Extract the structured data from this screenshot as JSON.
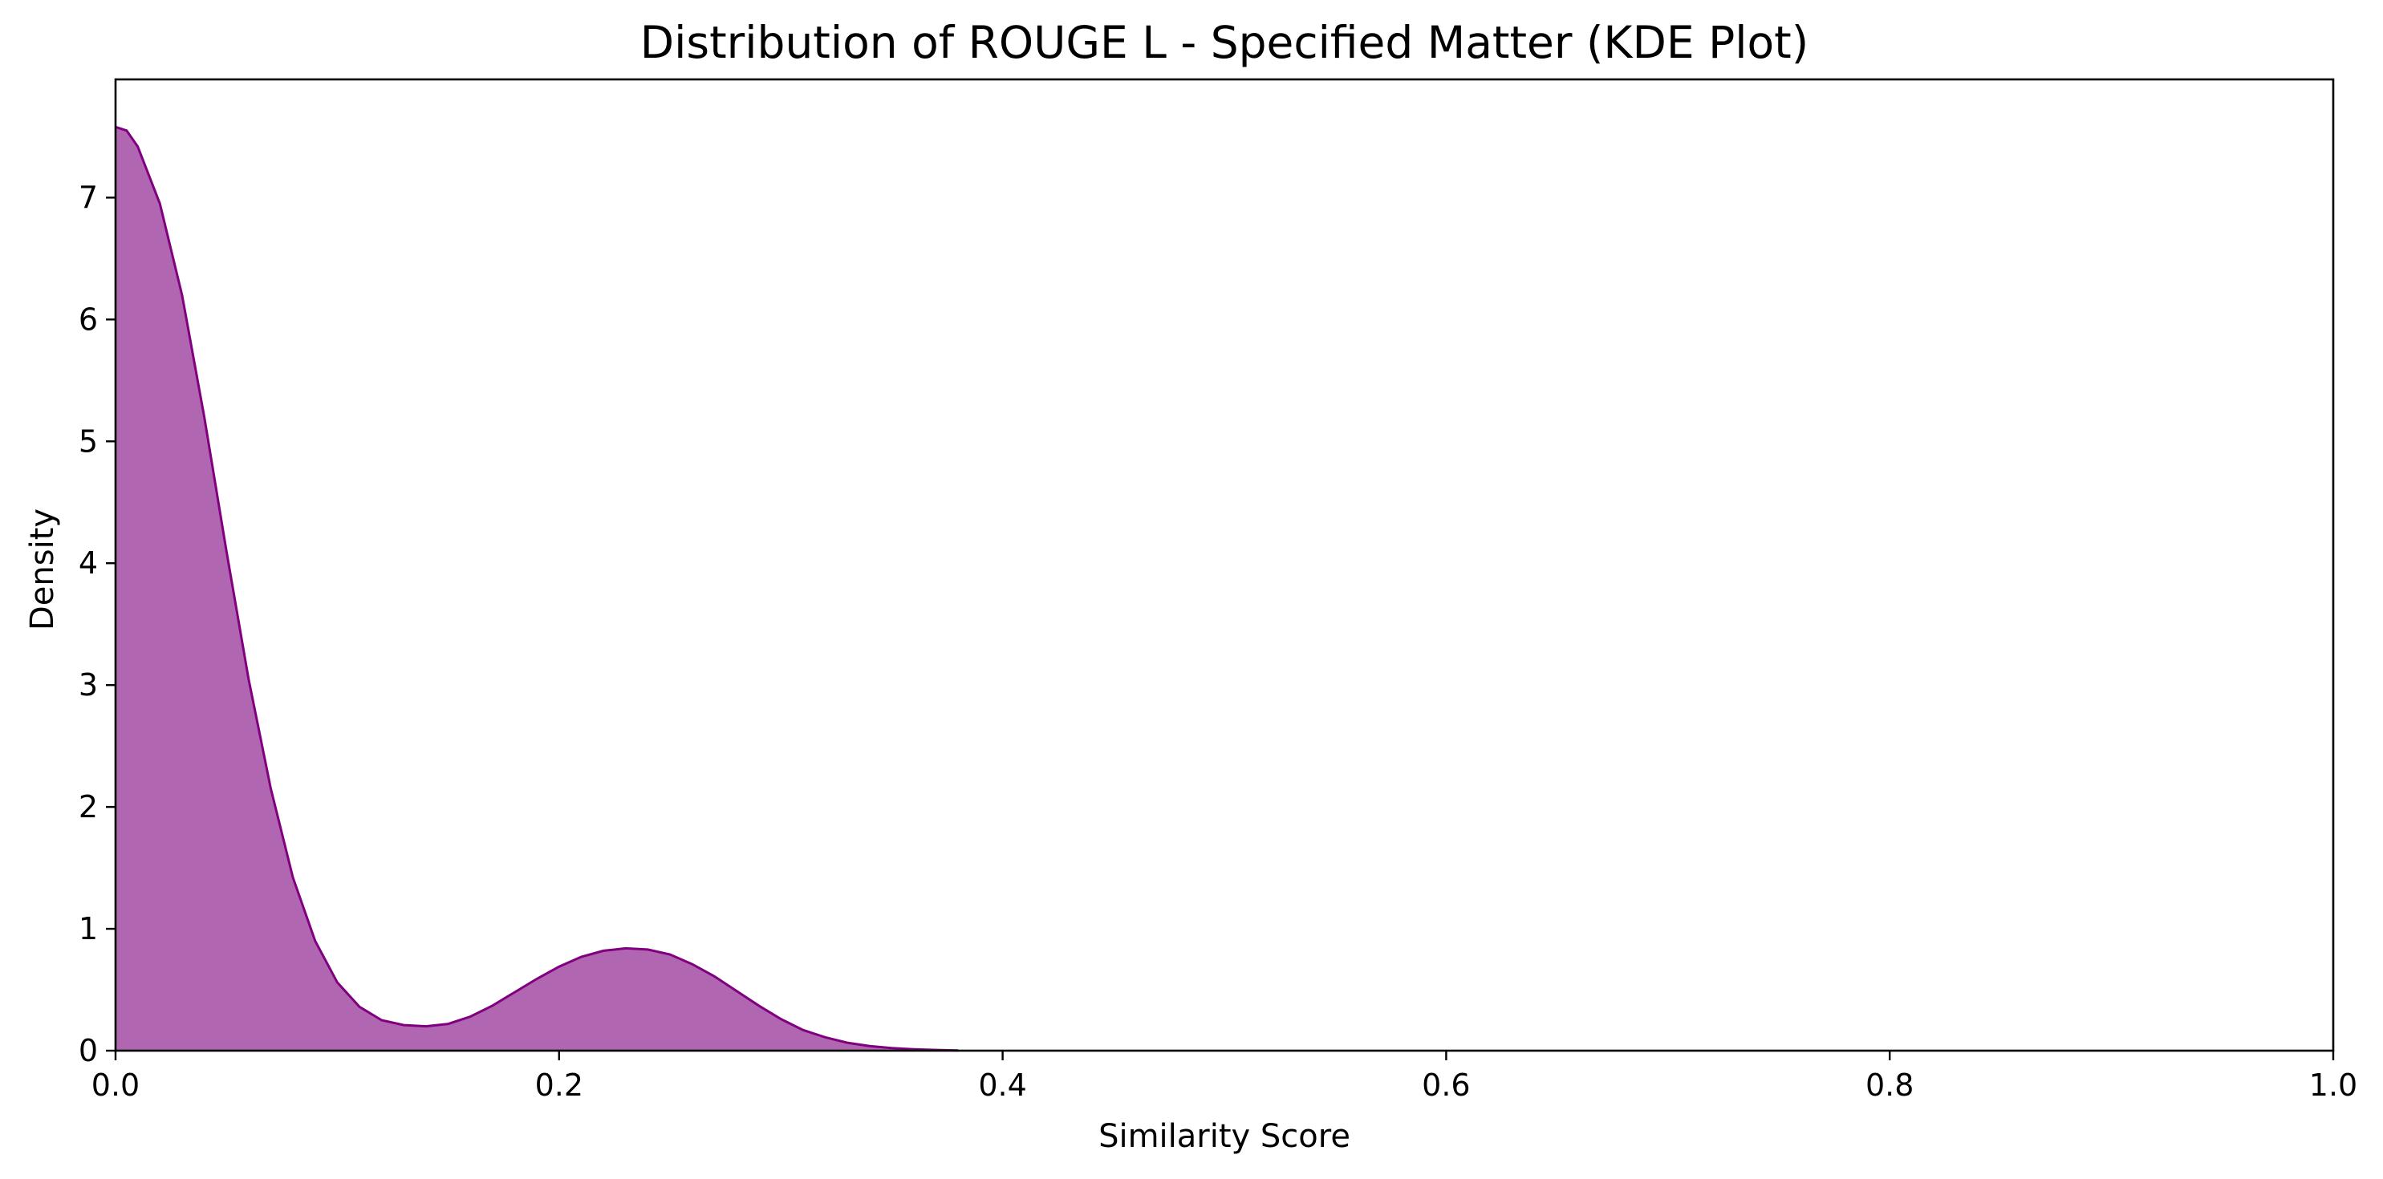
{
  "chart_data": {
    "type": "area",
    "title": "Distribution of ROUGE L - Specified Matter (KDE Plot)",
    "xlabel": "Similarity Score",
    "ylabel": "Density",
    "xlim": [
      0,
      1
    ],
    "ylim": [
      0,
      7.97
    ],
    "xticks": [
      "0.0",
      "0.2",
      "0.4",
      "0.6",
      "0.8",
      "1.0"
    ],
    "xtick_values": [
      0,
      0.2,
      0.4,
      0.6,
      0.8,
      1.0
    ],
    "yticks": [
      "0",
      "1",
      "2",
      "3",
      "4",
      "5",
      "6",
      "7"
    ],
    "ytick_values": [
      0,
      1,
      2,
      3,
      4,
      5,
      6,
      7
    ],
    "grid": false,
    "legend": "none",
    "fill_color": "#b066b0",
    "line_color": "#800080",
    "series": [
      {
        "x": [
          0.0,
          0.005,
          0.01,
          0.02,
          0.03,
          0.04,
          0.05,
          0.06,
          0.07,
          0.08,
          0.09,
          0.1,
          0.11,
          0.12,
          0.13,
          0.14,
          0.15,
          0.16,
          0.17,
          0.18,
          0.19,
          0.2,
          0.21,
          0.22,
          0.23,
          0.24,
          0.25,
          0.26,
          0.27,
          0.28,
          0.29,
          0.3,
          0.31,
          0.32,
          0.33,
          0.34,
          0.35,
          0.36,
          0.37,
          0.38
        ],
        "y": [
          7.58,
          7.55,
          7.42,
          6.95,
          6.2,
          5.2,
          4.1,
          3.05,
          2.15,
          1.42,
          0.9,
          0.56,
          0.36,
          0.25,
          0.21,
          0.2,
          0.22,
          0.28,
          0.37,
          0.48,
          0.59,
          0.69,
          0.77,
          0.82,
          0.84,
          0.83,
          0.79,
          0.71,
          0.61,
          0.49,
          0.37,
          0.26,
          0.17,
          0.11,
          0.065,
          0.038,
          0.022,
          0.012,
          0.006,
          0.002
        ]
      }
    ]
  }
}
